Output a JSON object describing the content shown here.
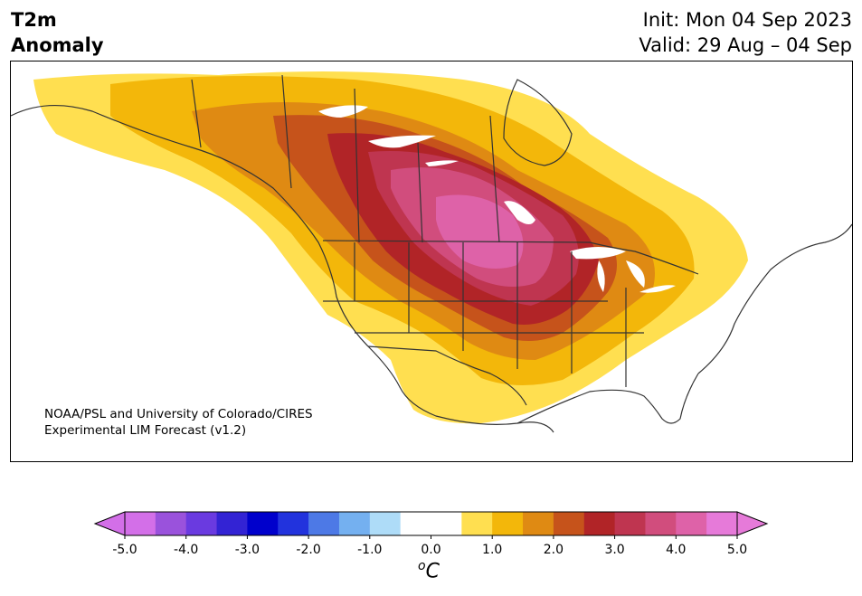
{
  "title": {
    "left_line1": "T2m",
    "left_line2": "Anomaly",
    "right_line1": "Init: Mon 04 Sep 2023",
    "right_line2": "Valid: 29 Aug – 04 Sep"
  },
  "credit": {
    "line1": "NOAA/PSL and University of Colorado/CIRES",
    "line2": "Experimental LIM Forecast (v1.2)"
  },
  "colorbar": {
    "unit_base": "C",
    "unit_sup": "o",
    "ticks": [
      "-5.0",
      "-4.0",
      "-3.0",
      "-2.0",
      "-1.0",
      "0.0",
      "1.0",
      "2.0",
      "3.0",
      "4.0",
      "5.0"
    ],
    "colors": [
      "#d36fe8",
      "#9a52dc",
      "#6a3ae0",
      "#3323d4",
      "#0000cc",
      "#2233dd",
      "#4d79e6",
      "#74b0f0",
      "#aedcf8",
      "#ffffff",
      "#ffffff",
      "#ffdf50",
      "#f3b70a",
      "#df8a13",
      "#c6531b",
      "#b12427",
      "#bf3550",
      "#d14d7d",
      "#de62a8",
      "#e67ad9"
    ],
    "under_color": "#d36fe8",
    "over_color": "#e67ad9"
  },
  "map": {
    "region": "North America",
    "anomaly_max_region": "Northern Plains",
    "land_color": "#ffffff",
    "line_color": "#333333"
  }
}
